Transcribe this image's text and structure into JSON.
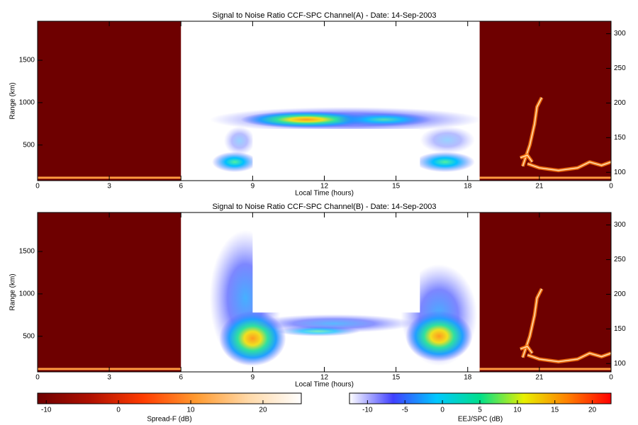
{
  "chart_data": [
    {
      "type": "heatmap",
      "title": "Signal to Noise Ratio CCF-SPC Channel(A) - Date: 14-Sep-2003",
      "xlabel": "Local Time (hours)",
      "ylabel": "Range (km)",
      "xlim": [
        0,
        24
      ],
      "xticks": [
        0,
        3,
        6,
        9,
        12,
        15,
        18,
        21,
        {
          "value": 24,
          "label": "0"
        }
      ],
      "ylim": [
        80,
        1960
      ],
      "yticks": [
        500,
        1000,
        1500
      ],
      "y2lim": [
        88,
        318
      ],
      "y2ticks": [
        100,
        150,
        200,
        250,
        300
      ]
    },
    {
      "type": "heatmap",
      "title": "Signal to Noise Ratio CCF-SPC Channel(B) - Date: 14-Sep-2003",
      "xlabel": "Local Time (hours)",
      "ylabel": "Range (km)",
      "xlim": [
        0,
        24
      ],
      "xticks": [
        0,
        3,
        6,
        9,
        12,
        15,
        18,
        21,
        {
          "value": 24,
          "label": "0"
        }
      ],
      "ylim": [
        80,
        1960
      ],
      "yticks": [
        500,
        1000,
        1500
      ],
      "y2lim": [
        88,
        318
      ],
      "y2ticks": [
        100,
        150,
        200,
        250,
        300
      ]
    }
  ],
  "colorbars": [
    {
      "label": "Spread-F (dB)",
      "lim": [
        -11.2,
        25.3
      ],
      "ticks": [
        -10,
        0,
        10,
        20
      ],
      "colors": [
        "#6e0000",
        "#b01000",
        "#ff3c00",
        "#ff9a30",
        "#ffd9a8",
        "#ffffff"
      ]
    },
    {
      "label": "EEJ/SPC (dB)",
      "lim": [
        -12.4,
        22.5
      ],
      "ticks": [
        -10,
        -5,
        0,
        5,
        10,
        15,
        20
      ],
      "colors": [
        "#ffffff",
        "#4040ff",
        "#00c8ff",
        "#00e08a",
        "#e8f000",
        "#ff8000",
        "#ff0000"
      ]
    }
  ]
}
